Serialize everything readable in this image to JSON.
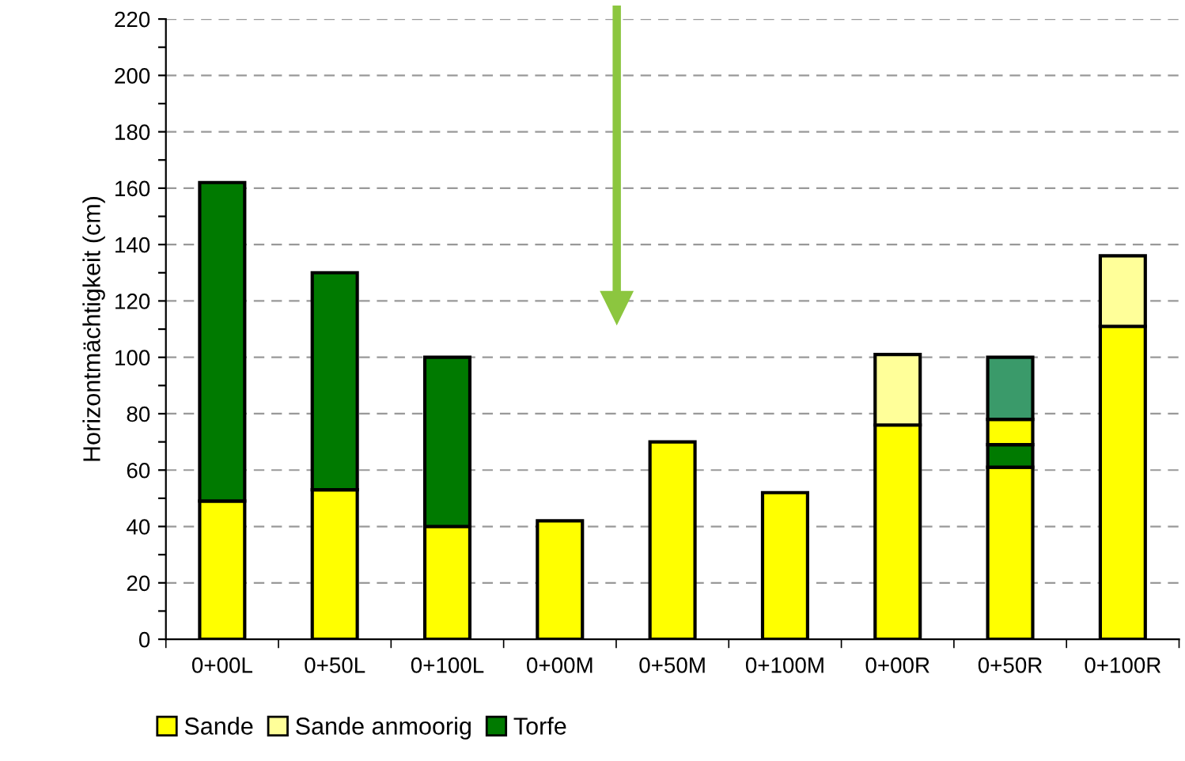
{
  "chart_data": {
    "type": "bar",
    "stacked": true,
    "ylabel": "Horizontmächtigkeit (cm)",
    "categories": [
      "0+00L",
      "0+50L",
      "0+100L",
      "0+00M",
      "0+50M",
      "0+100M",
      "0+00R",
      "0+50R",
      "0+100R"
    ],
    "series": [
      {
        "name": "Sande",
        "color": "#ffff00",
        "values": [
          49,
          53,
          40,
          42,
          70,
          52,
          76,
          61,
          111
        ]
      },
      {
        "name": "Sande anmoorig",
        "color": "#ffff99",
        "values": [
          null,
          null,
          null,
          null,
          null,
          null,
          25,
          null,
          25
        ]
      },
      {
        "name": "Torfe",
        "color": "#007a00",
        "values": [
          113,
          77,
          60,
          null,
          null,
          null,
          null,
          8,
          null
        ]
      },
      {
        "color": "#ffff00",
        "values": [
          null,
          null,
          null,
          null,
          null,
          null,
          null,
          9,
          null
        ]
      },
      {
        "color": "#3a9a6a",
        "values": [
          null,
          null,
          null,
          null,
          null,
          null,
          null,
          22,
          null
        ]
      }
    ],
    "ylim": [
      0,
      220
    ],
    "yticks": [
      0,
      {
        "value": 10,
        "label": null
      },
      20,
      {
        "value": 30,
        "label": null
      },
      40,
      {
        "value": 50,
        "label": null
      },
      60,
      {
        "value": 70,
        "label": null
      },
      80,
      {
        "value": 90,
        "label": null
      },
      100,
      {
        "value": 110,
        "label": null
      },
      120,
      {
        "value": 130,
        "label": null
      },
      140,
      {
        "value": 150,
        "label": null
      },
      160,
      {
        "value": 170,
        "label": null
      },
      180,
      {
        "value": 190,
        "label": null
      },
      200,
      {
        "value": 210,
        "label": null
      },
      220
    ],
    "grid": "y",
    "legend": "bottom left"
  }
}
